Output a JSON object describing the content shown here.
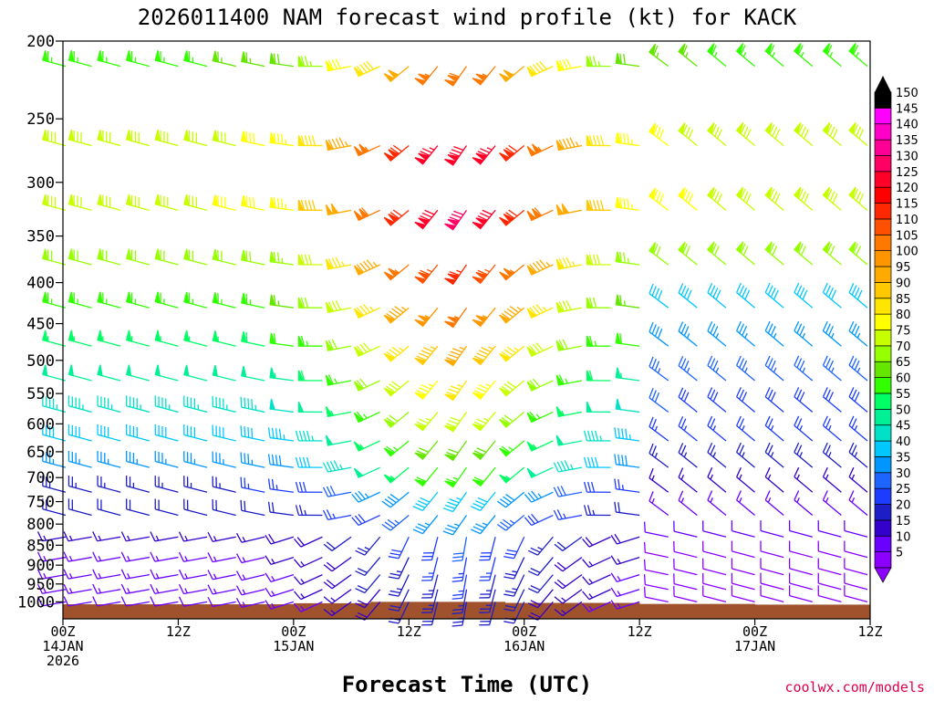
{
  "chart_data": {
    "type": "wind-barb-time-height",
    "title": "2026011400 NAM forecast wind profile (kt) for KACK",
    "xlabel": "Forecast Time (UTC)",
    "ylabel": "",
    "units": "kt",
    "credit": "coolwx.com/models",
    "y_axis": {
      "type": "log-pressure",
      "range_hPa": [
        200,
        1050
      ],
      "ticks": [
        200,
        250,
        300,
        350,
        400,
        450,
        500,
        550,
        600,
        650,
        700,
        750,
        800,
        850,
        900,
        950,
        1000
      ],
      "tick_labels": [
        "200",
        "250",
        "300",
        "350",
        "400",
        "450",
        "500",
        "550",
        "600",
        "650",
        "700",
        "750",
        "800",
        "850",
        "900",
        "950",
        "1000"
      ]
    },
    "x_axis": {
      "range_hours": [
        0,
        84
      ],
      "barb_interval_hours": 3,
      "ticks": [
        {
          "hour": 0,
          "line1": "00Z",
          "line2": "14JAN",
          "line3": "2026"
        },
        {
          "hour": 12,
          "line1": "12Z",
          "line2": "",
          "line3": ""
        },
        {
          "hour": 24,
          "line1": "00Z",
          "line2": "15JAN",
          "line3": ""
        },
        {
          "hour": 36,
          "line1": "12Z",
          "line2": "",
          "line3": ""
        },
        {
          "hour": 48,
          "line1": "00Z",
          "line2": "16JAN",
          "line3": ""
        },
        {
          "hour": 60,
          "line1": "12Z",
          "line2": "",
          "line3": ""
        },
        {
          "hour": 72,
          "line1": "00Z",
          "line2": "17JAN",
          "line3": ""
        },
        {
          "hour": 84,
          "line1": "12Z",
          "line2": "",
          "line3": ""
        }
      ]
    },
    "wind_field_levels_hPa": [
      215,
      270,
      325,
      380,
      430,
      480,
      530,
      580,
      630,
      680,
      730,
      780,
      830,
      880,
      925,
      965,
      1000
    ],
    "terrain": {
      "color": "#a0522d",
      "segments": [
        {
          "from_hour": 0,
          "to_hour": 24,
          "pressure_hPa": 1007
        },
        {
          "from_hour": 24,
          "to_hour": 32,
          "pressure_hPa": 1004
        },
        {
          "from_hour": 32,
          "to_hour": 46,
          "pressure_hPa": 1000
        },
        {
          "from_hour": 46,
          "to_hour": 60,
          "pressure_hPa": 1003
        },
        {
          "from_hour": 60,
          "to_hour": 72,
          "pressure_hPa": 1006
        },
        {
          "from_hour": 72,
          "to_hour": 84,
          "pressure_hPa": 1008
        }
      ]
    },
    "colorbar": {
      "levels": [
        5,
        10,
        15,
        20,
        25,
        30,
        35,
        40,
        45,
        50,
        55,
        60,
        65,
        70,
        75,
        80,
        85,
        90,
        95,
        100,
        105,
        110,
        115,
        120,
        125,
        130,
        135,
        140,
        145,
        150
      ],
      "colors": [
        "#8b00ff",
        "#6a00ff",
        "#3300cc",
        "#1e1ec8",
        "#1e3cff",
        "#1e64ff",
        "#0096ff",
        "#00c8ff",
        "#00e1c8",
        "#00f096",
        "#00ff64",
        "#32ff00",
        "#64e600",
        "#96ff00",
        "#c8ff00",
        "#ffff00",
        "#ffe600",
        "#ffc800",
        "#ffaa00",
        "#ff9600",
        "#ff7800",
        "#ff5000",
        "#ff2800",
        "#ff0000",
        "#ff0028",
        "#ff0064",
        "#ff0096",
        "#ff00c8",
        "#ff00ff",
        "#000000"
      ]
    }
  }
}
